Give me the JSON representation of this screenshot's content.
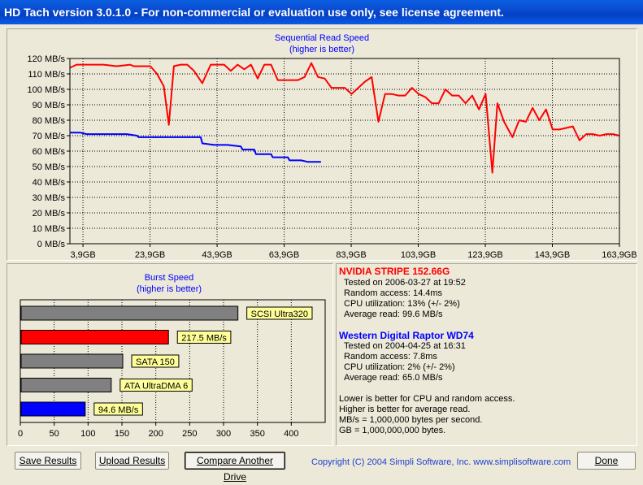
{
  "window": {
    "title": "HD Tach version 3.0.1.0  - For non-commercial or evaluation use only, see license agreement."
  },
  "colors": {
    "drive1": "#ff0000",
    "drive2": "#0000ff",
    "bar_gray": "#808080",
    "label_yellow": "#ffff99"
  },
  "chart_data": [
    {
      "type": "line",
      "title": "Sequential Read Speed",
      "subtitle": "(higher is better)",
      "y_unit": "MB/s",
      "ylim": [
        0,
        120
      ],
      "yticks": [
        0,
        10,
        20,
        30,
        40,
        50,
        60,
        70,
        80,
        90,
        100,
        110,
        120
      ],
      "xlim": [
        0,
        163.9
      ],
      "xticks": [
        3.9,
        23.9,
        43.9,
        63.9,
        83.9,
        103.9,
        123.9,
        143.9,
        163.9
      ],
      "xtick_labels": [
        "3,9GB",
        "23,9GB",
        "43,9GB",
        "63,9GB",
        "83,9GB",
        "103,9GB",
        "123,9GB",
        "143,9GB",
        "163,9GB"
      ],
      "grid": true,
      "series": [
        {
          "name": "NVIDIA STRIPE 152.66G",
          "color": "#ff0000",
          "x": [
            0,
            2,
            4,
            6,
            10,
            14,
            18,
            19,
            22,
            24,
            26,
            28,
            29.5,
            31,
            33,
            35,
            37,
            39.5,
            42,
            44,
            46,
            48,
            50,
            52,
            54,
            56,
            58,
            60,
            62,
            64,
            66,
            68,
            70,
            72,
            74,
            76,
            78,
            80,
            82,
            84,
            86,
            88,
            90,
            92,
            94,
            96,
            98,
            100,
            102,
            104,
            106,
            108,
            110,
            112,
            114,
            116,
            118,
            120,
            122,
            124,
            126,
            127.5,
            129.5,
            132,
            134,
            136,
            138,
            140,
            142,
            144,
            146,
            148,
            150,
            152,
            154,
            156,
            158,
            160,
            162,
            163.9
          ],
          "y": [
            114,
            116,
            116,
            116,
            116,
            115,
            116,
            115,
            115,
            115,
            110,
            102,
            77,
            115,
            116,
            116,
            112,
            104,
            116,
            116,
            116,
            112,
            116,
            113,
            116,
            107,
            116,
            116,
            106,
            106,
            106,
            106,
            108,
            117,
            108,
            107,
            101,
            101,
            101,
            97,
            101,
            105,
            108,
            79,
            97,
            97,
            96,
            96,
            101,
            97,
            95,
            91,
            91,
            100,
            96,
            96,
            91,
            96,
            87,
            97,
            46,
            91,
            79,
            69,
            80,
            79,
            88,
            80,
            87,
            74,
            74,
            75,
            76,
            67,
            71,
            71,
            70,
            71,
            71,
            70
          ]
        },
        {
          "name": "Western Digital Raptor WD74",
          "color": "#0000ff",
          "x": [
            0,
            3,
            5,
            8,
            11,
            14,
            17,
            20,
            20.5,
            25,
            30,
            35,
            39,
            39.5,
            43,
            47,
            51,
            51.5,
            55,
            55.5,
            60,
            60.5,
            65,
            65.5,
            69,
            71,
            74,
            74.9
          ],
          "y": [
            72,
            72,
            71,
            71,
            71,
            71,
            71,
            70,
            69,
            69,
            69,
            69,
            69,
            65,
            64,
            64,
            63,
            61,
            61,
            58,
            58,
            56,
            56,
            54,
            54,
            53,
            53,
            53
          ]
        }
      ]
    },
    {
      "type": "bar",
      "orientation": "horizontal",
      "title": "Burst Speed",
      "subtitle": "(higher is better)",
      "xlim": [
        0,
        450
      ],
      "xticks": [
        0,
        50,
        100,
        150,
        200,
        250,
        300,
        350,
        400
      ],
      "grid": true,
      "bars": [
        {
          "label": "SCSI Ultra320",
          "value": 320,
          "color": "#808080"
        },
        {
          "label": "217.5 MB/s",
          "value": 217.5,
          "color": "#ff0000"
        },
        {
          "label": "SATA 150",
          "value": 150,
          "color": "#808080"
        },
        {
          "label": "ATA UltraDMA 6",
          "value": 133,
          "color": "#808080"
        },
        {
          "label": "94.6 MB/s",
          "value": 94.6,
          "color": "#0000ff"
        }
      ]
    }
  ],
  "drives": [
    {
      "name": "NVIDIA STRIPE 152.66G",
      "color": "#ff0000",
      "tested": "Tested on 2006-03-27 at 19:52",
      "random_access": "Random access: 14.4ms",
      "cpu": "CPU utilization: 13% (+/- 2%)",
      "average_read": "Average read: 99.6 MB/s"
    },
    {
      "name": "Western Digital Raptor WD74",
      "color": "#0000ff",
      "tested": "Tested on 2004-04-25 at 16:31",
      "random_access": "Random access: 7.8ms",
      "cpu": "CPU utilization: 2% (+/- 2%)",
      "average_read": "Average read: 65.0 MB/s"
    }
  ],
  "notes": [
    "Lower is better for CPU and random access.",
    "Higher is better for average read.",
    "MB/s = 1,000,000 bytes per second.",
    "GB = 1,000,000,000 bytes."
  ],
  "buttons": {
    "save": "Save Results",
    "upload": "Upload Results",
    "compare": "Compare Another Drive",
    "done": "Done"
  },
  "copyright": "Copyright (C) 2004 Simpli Software, Inc. www.simplisoftware.com"
}
